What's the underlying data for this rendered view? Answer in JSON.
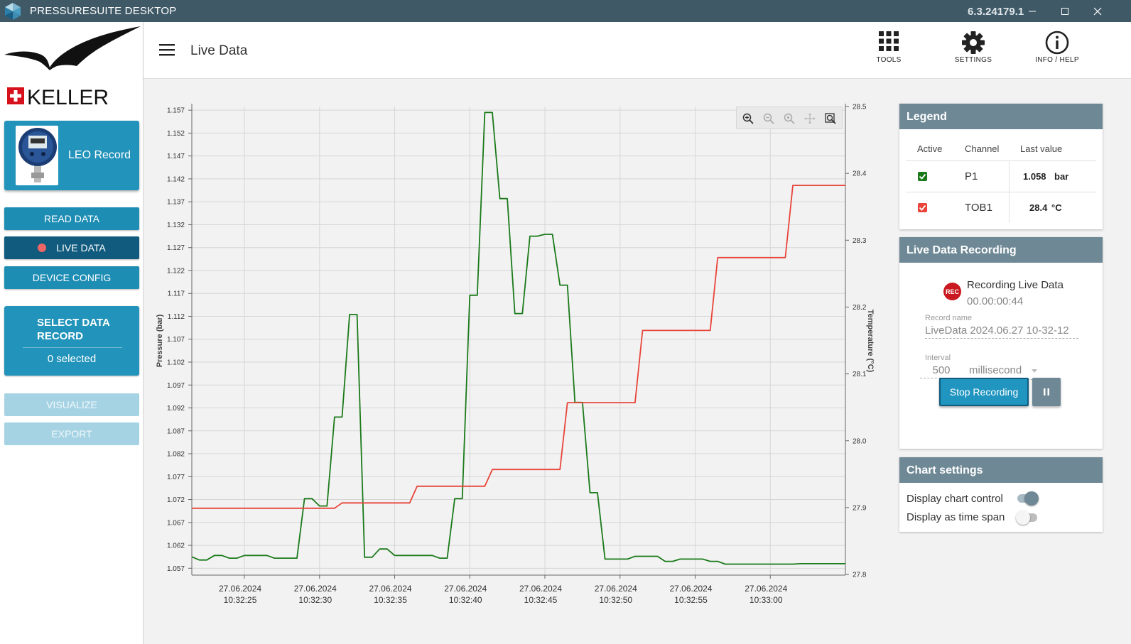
{
  "titlebar": {
    "title": "PRESSURESUITE DESKTOP",
    "version": "6.3.24179.1",
    "icons": [
      "minimize-icon",
      "maximize-icon",
      "close-icon"
    ]
  },
  "sidebar": {
    "brand": "KELLER",
    "device": {
      "name": "LEO Record"
    },
    "buttons": {
      "read_data": "READ DATA",
      "live_data": "LIVE DATA",
      "device_config": "DEVICE CONFIG",
      "visualize": "VISUALIZE",
      "export": "EXPORT"
    },
    "select_record": {
      "title": "SELECT DATA RECORD",
      "count": "0 selected"
    }
  },
  "header": {
    "title": "Live Data",
    "tools": [
      {
        "label": "TOOLS",
        "icon": "grid-icon"
      },
      {
        "label": "SETTINGS",
        "icon": "gear-icon"
      },
      {
        "label": "INFO / HELP",
        "icon": "info-icon"
      }
    ]
  },
  "legend": {
    "title": "Legend",
    "headers": {
      "active": "Active",
      "channel": "Channel",
      "last_value": "Last value"
    },
    "rows": [
      {
        "channel": "P1",
        "value": "1.058",
        "unit": "bar",
        "color": "#1a7a1a",
        "active": true
      },
      {
        "channel": "TOB1",
        "value": "28.4",
        "unit": "°C",
        "color": "#e8443a",
        "active": true
      }
    ]
  },
  "recording": {
    "title": "Live Data Recording",
    "badge": "REC",
    "status": "Recording Live Data",
    "elapsed": "00.00:00:44",
    "record_name_label": "Record name",
    "record_name": "LiveData 2024.06.27 10-32-12",
    "interval_label": "Interval",
    "interval_value": "500",
    "interval_unit": "millisecond",
    "stop_label": "Stop Recording",
    "pause_label": "II"
  },
  "chart_settings": {
    "title": "Chart settings",
    "display_chart_control": {
      "label": "Display chart control",
      "on": true
    },
    "display_time_span": {
      "label": "Display as time span",
      "on": false
    }
  },
  "chart_data": {
    "type": "line",
    "ylabel": "Pressure (bar)",
    "y2label": "Temperature (°C)",
    "ylim": [
      1.0555,
      1.1578
    ],
    "y2lim": [
      27.799,
      28.5
    ],
    "yticks": [
      "1.157",
      "1.152",
      "1.147",
      "1.142",
      "1.137",
      "1.132",
      "1.127",
      "1.122",
      "1.117",
      "1.112",
      "1.107",
      "1.102",
      "1.097",
      "1.092",
      "1.087",
      "1.082",
      "1.077",
      "1.072",
      "1.067",
      "1.062",
      "1.057"
    ],
    "y2ticks": [
      "28.5",
      "28.4",
      "28.3",
      "28.2",
      "28.1",
      "28.0",
      "27.9",
      "27.8"
    ],
    "xlim_seconds": [
      0,
      43.5
    ],
    "xticks": [
      {
        "t": 3.5,
        "date": "27.06.2024",
        "time": "10:32:25"
      },
      {
        "t": 8.5,
        "date": "27.06.2024",
        "time": "10:32:30"
      },
      {
        "t": 13.5,
        "date": "27.06.2024",
        "time": "10:32:35"
      },
      {
        "t": 18.5,
        "date": "27.06.2024",
        "time": "10:32:40"
      },
      {
        "t": 23.5,
        "date": "27.06.2024",
        "time": "10:32:45"
      },
      {
        "t": 28.5,
        "date": "27.06.2024",
        "time": "10:32:50"
      },
      {
        "t": 33.5,
        "date": "27.06.2024",
        "time": "10:32:55"
      },
      {
        "t": 38.5,
        "date": "27.06.2024",
        "time": "10:33:00"
      }
    ],
    "series": [
      {
        "name": "P1",
        "axis": "left",
        "color": "#1a7a1a",
        "step": false,
        "points": [
          [
            0,
            1.0595
          ],
          [
            0.5,
            1.0588
          ],
          [
            1,
            1.0588
          ],
          [
            1.5,
            1.0598
          ],
          [
            2,
            1.0598
          ],
          [
            2.5,
            1.0592
          ],
          [
            3,
            1.0592
          ],
          [
            3.5,
            1.0598
          ],
          [
            4,
            1.0598
          ],
          [
            5,
            1.0598
          ],
          [
            5.5,
            1.0592
          ],
          [
            7,
            1.0592
          ],
          [
            7.5,
            1.0722
          ],
          [
            8,
            1.0722
          ],
          [
            8.5,
            1.0706
          ],
          [
            9,
            1.0706
          ],
          [
            9.5,
            1.09
          ],
          [
            10,
            1.09
          ],
          [
            10.5,
            1.1124
          ],
          [
            11,
            1.1124
          ],
          [
            11.5,
            1.0594
          ],
          [
            12,
            1.0594
          ],
          [
            12.5,
            1.0612
          ],
          [
            13,
            1.0612
          ],
          [
            13.5,
            1.0598
          ],
          [
            16,
            1.0598
          ],
          [
            16.5,
            1.0592
          ],
          [
            17,
            1.0592
          ],
          [
            17.5,
            1.0722
          ],
          [
            18,
            1.0722
          ],
          [
            18.5,
            1.1166
          ],
          [
            19,
            1.1166
          ],
          [
            19.5,
            1.1565
          ],
          [
            20,
            1.1565
          ],
          [
            20.5,
            1.1377
          ],
          [
            21,
            1.1377
          ],
          [
            21.5,
            1.1126
          ],
          [
            22,
            1.1126
          ],
          [
            22.5,
            1.1295
          ],
          [
            23,
            1.1295
          ],
          [
            23.5,
            1.1299
          ],
          [
            24,
            1.1299
          ],
          [
            24.5,
            1.1188
          ],
          [
            25,
            1.1188
          ],
          [
            25.5,
            1.0932
          ],
          [
            26,
            1.0932
          ],
          [
            26.5,
            1.0735
          ],
          [
            27,
            1.0735
          ],
          [
            27.5,
            1.059
          ],
          [
            29,
            1.059
          ],
          [
            29.5,
            1.0596
          ],
          [
            31,
            1.0596
          ],
          [
            31.5,
            1.0585
          ],
          [
            32,
            1.0585
          ],
          [
            32.5,
            1.059
          ],
          [
            34,
            1.059
          ],
          [
            34.5,
            1.0585
          ],
          [
            35,
            1.0585
          ],
          [
            35.5,
            1.0579
          ],
          [
            40,
            1.0579
          ],
          [
            40.5,
            1.058
          ],
          [
            43.5,
            1.058
          ]
        ]
      },
      {
        "name": "TOB1",
        "axis": "right",
        "color": "#e8443a",
        "step": true,
        "points": [
          [
            0,
            27.899
          ],
          [
            9.5,
            27.899
          ],
          [
            10,
            27.907
          ],
          [
            14.5,
            27.907
          ],
          [
            15,
            27.932
          ],
          [
            19.5,
            27.932
          ],
          [
            20,
            27.957
          ],
          [
            24.5,
            27.957
          ],
          [
            25,
            28.057
          ],
          [
            29.5,
            28.057
          ],
          [
            30,
            28.165
          ],
          [
            34.5,
            28.165
          ],
          [
            35,
            28.274
          ],
          [
            39.5,
            28.274
          ],
          [
            40,
            28.382
          ],
          [
            43.5,
            28.382
          ]
        ]
      }
    ]
  }
}
